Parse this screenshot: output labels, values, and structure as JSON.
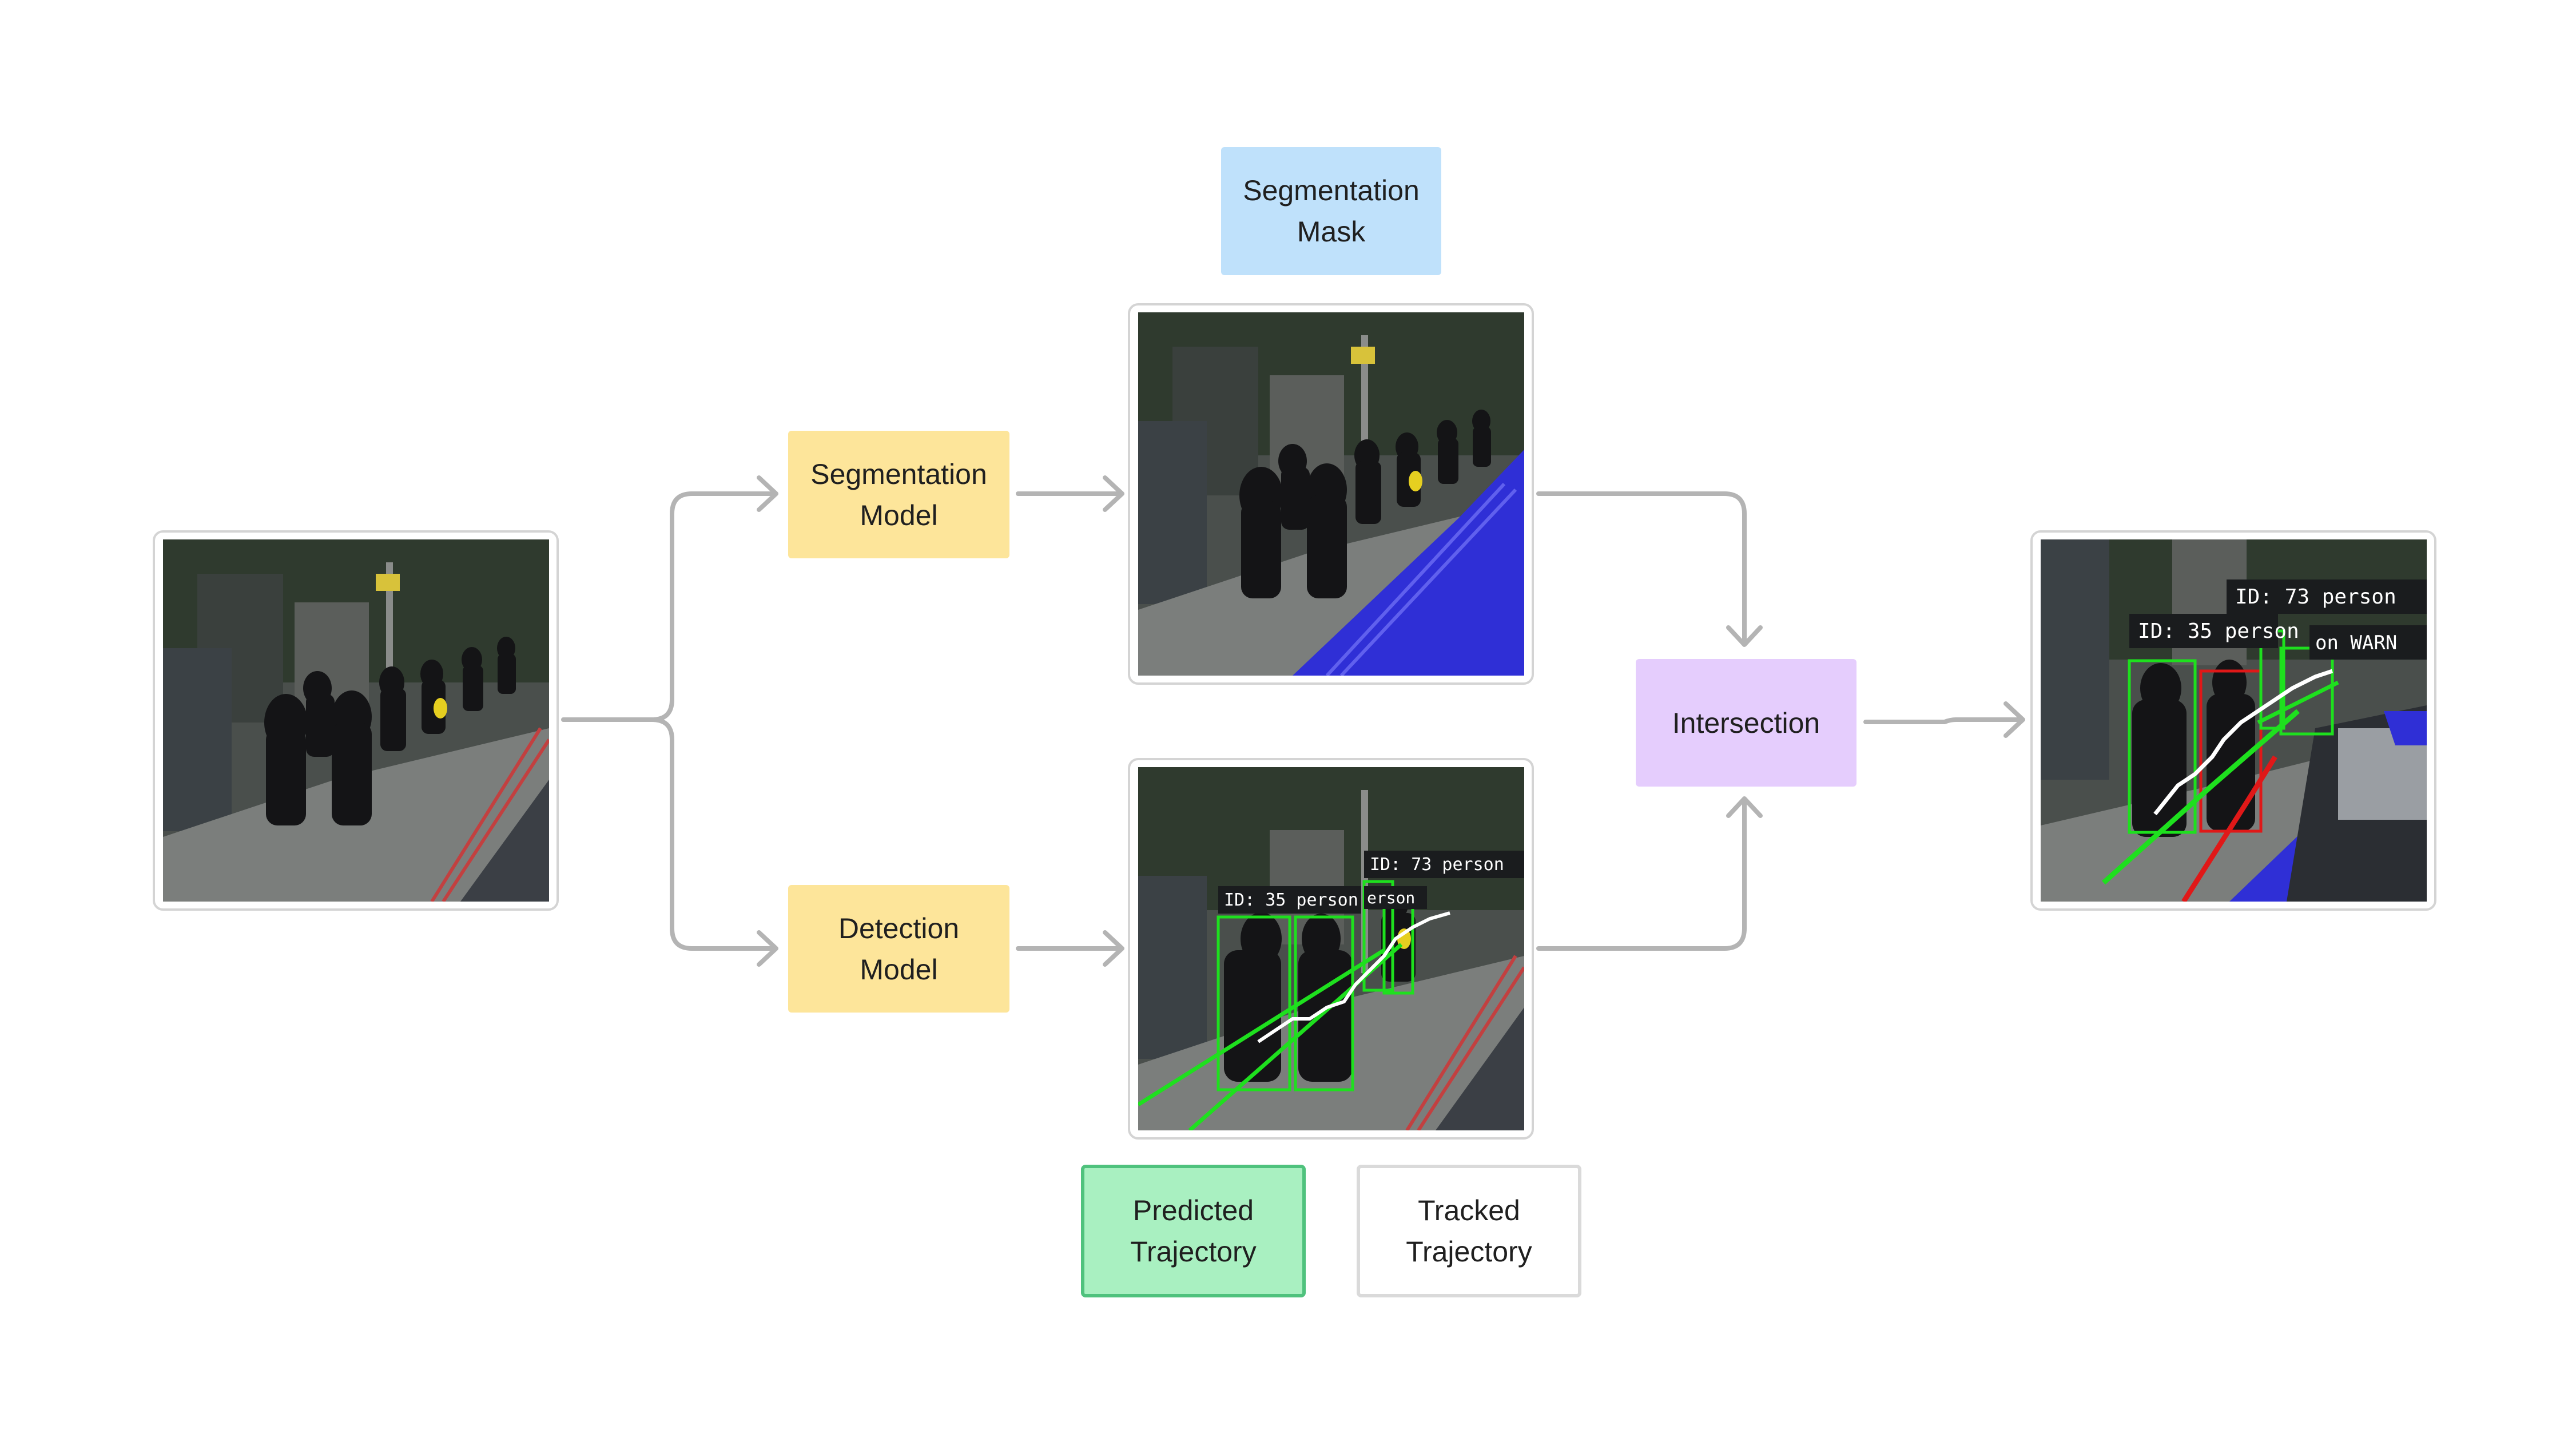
{
  "nodes": {
    "segmentation_model": [
      "Segmentation",
      "Model"
    ],
    "detection_model": [
      "Detection",
      "Model"
    ],
    "segmentation_mask": [
      "Segmentation",
      "Mask"
    ],
    "intersection": "Intersection",
    "predicted_trajectory": [
      "Predicted",
      "Trajectory"
    ],
    "tracked_trajectory": [
      "Tracked",
      "Trajectory"
    ]
  },
  "overlays": {
    "detection_id_35": "ID: 35 person",
    "detection_id_73": "ID: 73 person",
    "detection_partial": "erson",
    "output_id_73": "ID: 73 person",
    "output_id_35": "ID: 35 person",
    "output_warn": "on WARN"
  },
  "colors": {
    "model_box": "#fde59a",
    "mask_box": "#bfe1fb",
    "intersection_box": "#e5cdfd",
    "predicted_box": "#a9f0c1",
    "predicted_border": "#4fc27d",
    "arrow": "#b4b4b4",
    "mask_overlay": "#2f2fd6",
    "bbox_green": "#1ee01e",
    "bbox_red": "#e01818"
  },
  "icons": [
    "arrow-right-icon",
    "arrow-down-icon",
    "arrow-up-icon"
  ]
}
